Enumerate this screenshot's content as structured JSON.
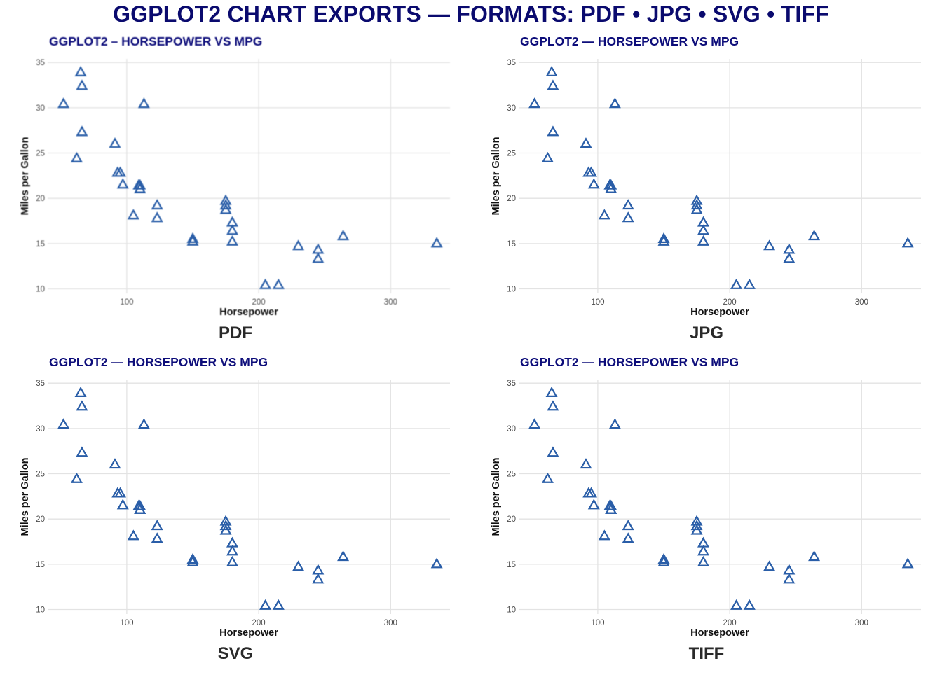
{
  "header": {
    "title": "GGPLOT2 CHART EXPORTS — FORMATS: PDF • JPG • SVG • TIFF"
  },
  "colors": {
    "title": "#0a0a6e",
    "chart_title": "#0d0d7a",
    "points": "#2a5ea8",
    "grid": "#e3e3e3",
    "caption": "#2a2a2a"
  },
  "panels": [
    {
      "caption": "PDF",
      "chart_title": "GGPLOT2 – HORSEPOWER VS MPG"
    },
    {
      "caption": "JPG",
      "chart_title": "GGPLOT2 — HORSEPOWER VS MPG"
    },
    {
      "caption": "SVG",
      "chart_title": "GGPLOT2 — HORSEPOWER VS MPG"
    },
    {
      "caption": "TIFF",
      "chart_title": "GGPLOT2 — HORSEPOWER VS MPG"
    }
  ],
  "chart_data": {
    "type": "scatter",
    "marker": "open-triangle",
    "xlabel": "Horsepower",
    "ylabel": "Miles per Gallon",
    "xlim": [
      40,
      345
    ],
    "ylim": [
      9.5,
      35.4
    ],
    "xticks": [
      100,
      200,
      300
    ],
    "yticks": [
      10,
      15,
      20,
      25,
      30,
      35
    ],
    "grid": true,
    "points": [
      {
        "x": 110,
        "y": 21.0
      },
      {
        "x": 110,
        "y": 21.0
      },
      {
        "x": 93,
        "y": 22.8
      },
      {
        "x": 110,
        "y": 21.4
      },
      {
        "x": 175,
        "y": 18.7
      },
      {
        "x": 105,
        "y": 18.1
      },
      {
        "x": 245,
        "y": 14.3
      },
      {
        "x": 62,
        "y": 24.4
      },
      {
        "x": 95,
        "y": 22.8
      },
      {
        "x": 123,
        "y": 19.2
      },
      {
        "x": 123,
        "y": 17.8
      },
      {
        "x": 180,
        "y": 16.4
      },
      {
        "x": 180,
        "y": 17.3
      },
      {
        "x": 180,
        "y": 15.2
      },
      {
        "x": 205,
        "y": 10.4
      },
      {
        "x": 215,
        "y": 10.4
      },
      {
        "x": 230,
        "y": 14.7
      },
      {
        "x": 66,
        "y": 32.4
      },
      {
        "x": 52,
        "y": 30.4
      },
      {
        "x": 65,
        "y": 33.9
      },
      {
        "x": 97,
        "y": 21.5
      },
      {
        "x": 150,
        "y": 15.5
      },
      {
        "x": 150,
        "y": 15.2
      },
      {
        "x": 245,
        "y": 13.3
      },
      {
        "x": 175,
        "y": 19.2
      },
      {
        "x": 66,
        "y": 27.3
      },
      {
        "x": 91,
        "y": 26.0
      },
      {
        "x": 113,
        "y": 30.4
      },
      {
        "x": 264,
        "y": 15.8
      },
      {
        "x": 175,
        "y": 19.7
      },
      {
        "x": 335,
        "y": 15.0
      },
      {
        "x": 109,
        "y": 21.4
      }
    ]
  }
}
